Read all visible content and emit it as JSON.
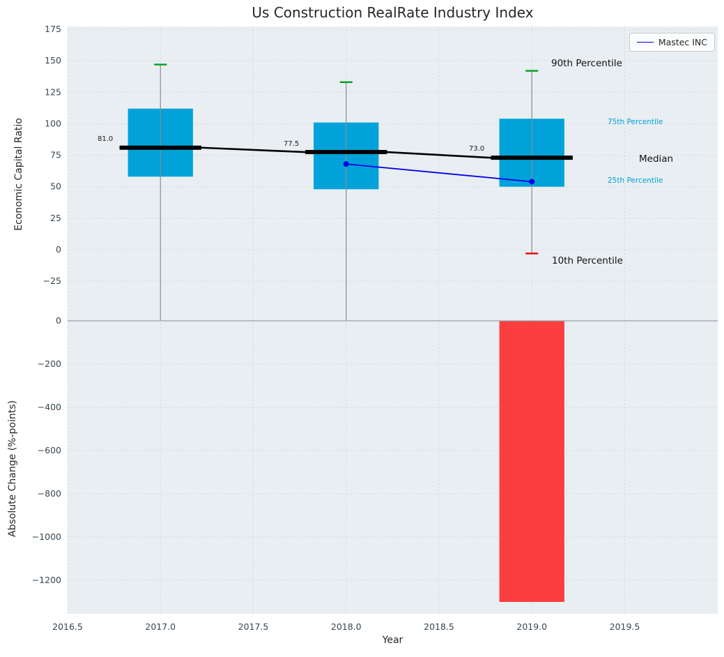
{
  "chart_data": {
    "type": "boxplot+bar",
    "title": "Us Construction RealRate Industry Index",
    "xlabel": "Year",
    "x_ticks": [
      2016.5,
      2017.0,
      2017.5,
      2018.0,
      2018.5,
      2019.0,
      2019.5
    ],
    "x_tick_labels": [
      "2016.5",
      "2017.0",
      "2017.5",
      "2018.0",
      "2018.5",
      "2019.0",
      "2019.5"
    ],
    "x_range": [
      2016.5,
      2020.0
    ],
    "legend": {
      "label": "Mastec INC"
    },
    "top_panel": {
      "ylabel": "Economic Capital Ratio",
      "ylim": [
        -57,
        177
      ],
      "yticks": [
        175,
        150,
        125,
        100,
        75,
        50,
        25,
        0,
        -25
      ],
      "ytick_labels": [
        "175",
        "150",
        "125",
        "100",
        "75",
        "50",
        "25",
        "0",
        "−25"
      ],
      "years": [
        2017,
        2018,
        2019
      ],
      "p90": [
        147,
        133,
        142
      ],
      "p75": [
        112,
        101,
        104
      ],
      "median": [
        81.0,
        77.5,
        73.0
      ],
      "p25": [
        58,
        48,
        50
      ],
      "p10": [
        null,
        null,
        -3
      ],
      "median_labels": [
        "81.0",
        "77.5",
        "73.0"
      ],
      "mastec_series": {
        "name": "Mastec INC",
        "years": [
          2018,
          2019
        ],
        "values": [
          68,
          54
        ]
      },
      "annotations": {
        "p90": "90th Percentile",
        "p75": "75th Percentile",
        "median": "Median",
        "p25": "25th Percentile",
        "p10": "10th Percentile"
      }
    },
    "bottom_panel": {
      "ylabel": "Absolute Change (%-points)",
      "ylim": [
        -1355,
        0
      ],
      "yticks": [
        0,
        -200,
        -400,
        -600,
        -800,
        -1000,
        -1200
      ],
      "ytick_labels": [
        "0",
        "−200",
        "−400",
        "−600",
        "−800",
        "−1000",
        "−1200"
      ],
      "bars": [
        {
          "year": 2019,
          "value": -1300
        }
      ]
    },
    "colors": {
      "box_fill": "#00a2d9",
      "negative_bar": "#fb3e3e",
      "p90_cap": "#009e23",
      "p10_cap": "#e50000",
      "median_line": "#000000",
      "mastec_line": "#0000e6",
      "whisker": "#8c8c8c",
      "panel_bg": "#e9eef2",
      "grid": "#cdd5dc",
      "percentile_label": "#00a2d9",
      "text": "#36454f"
    }
  }
}
